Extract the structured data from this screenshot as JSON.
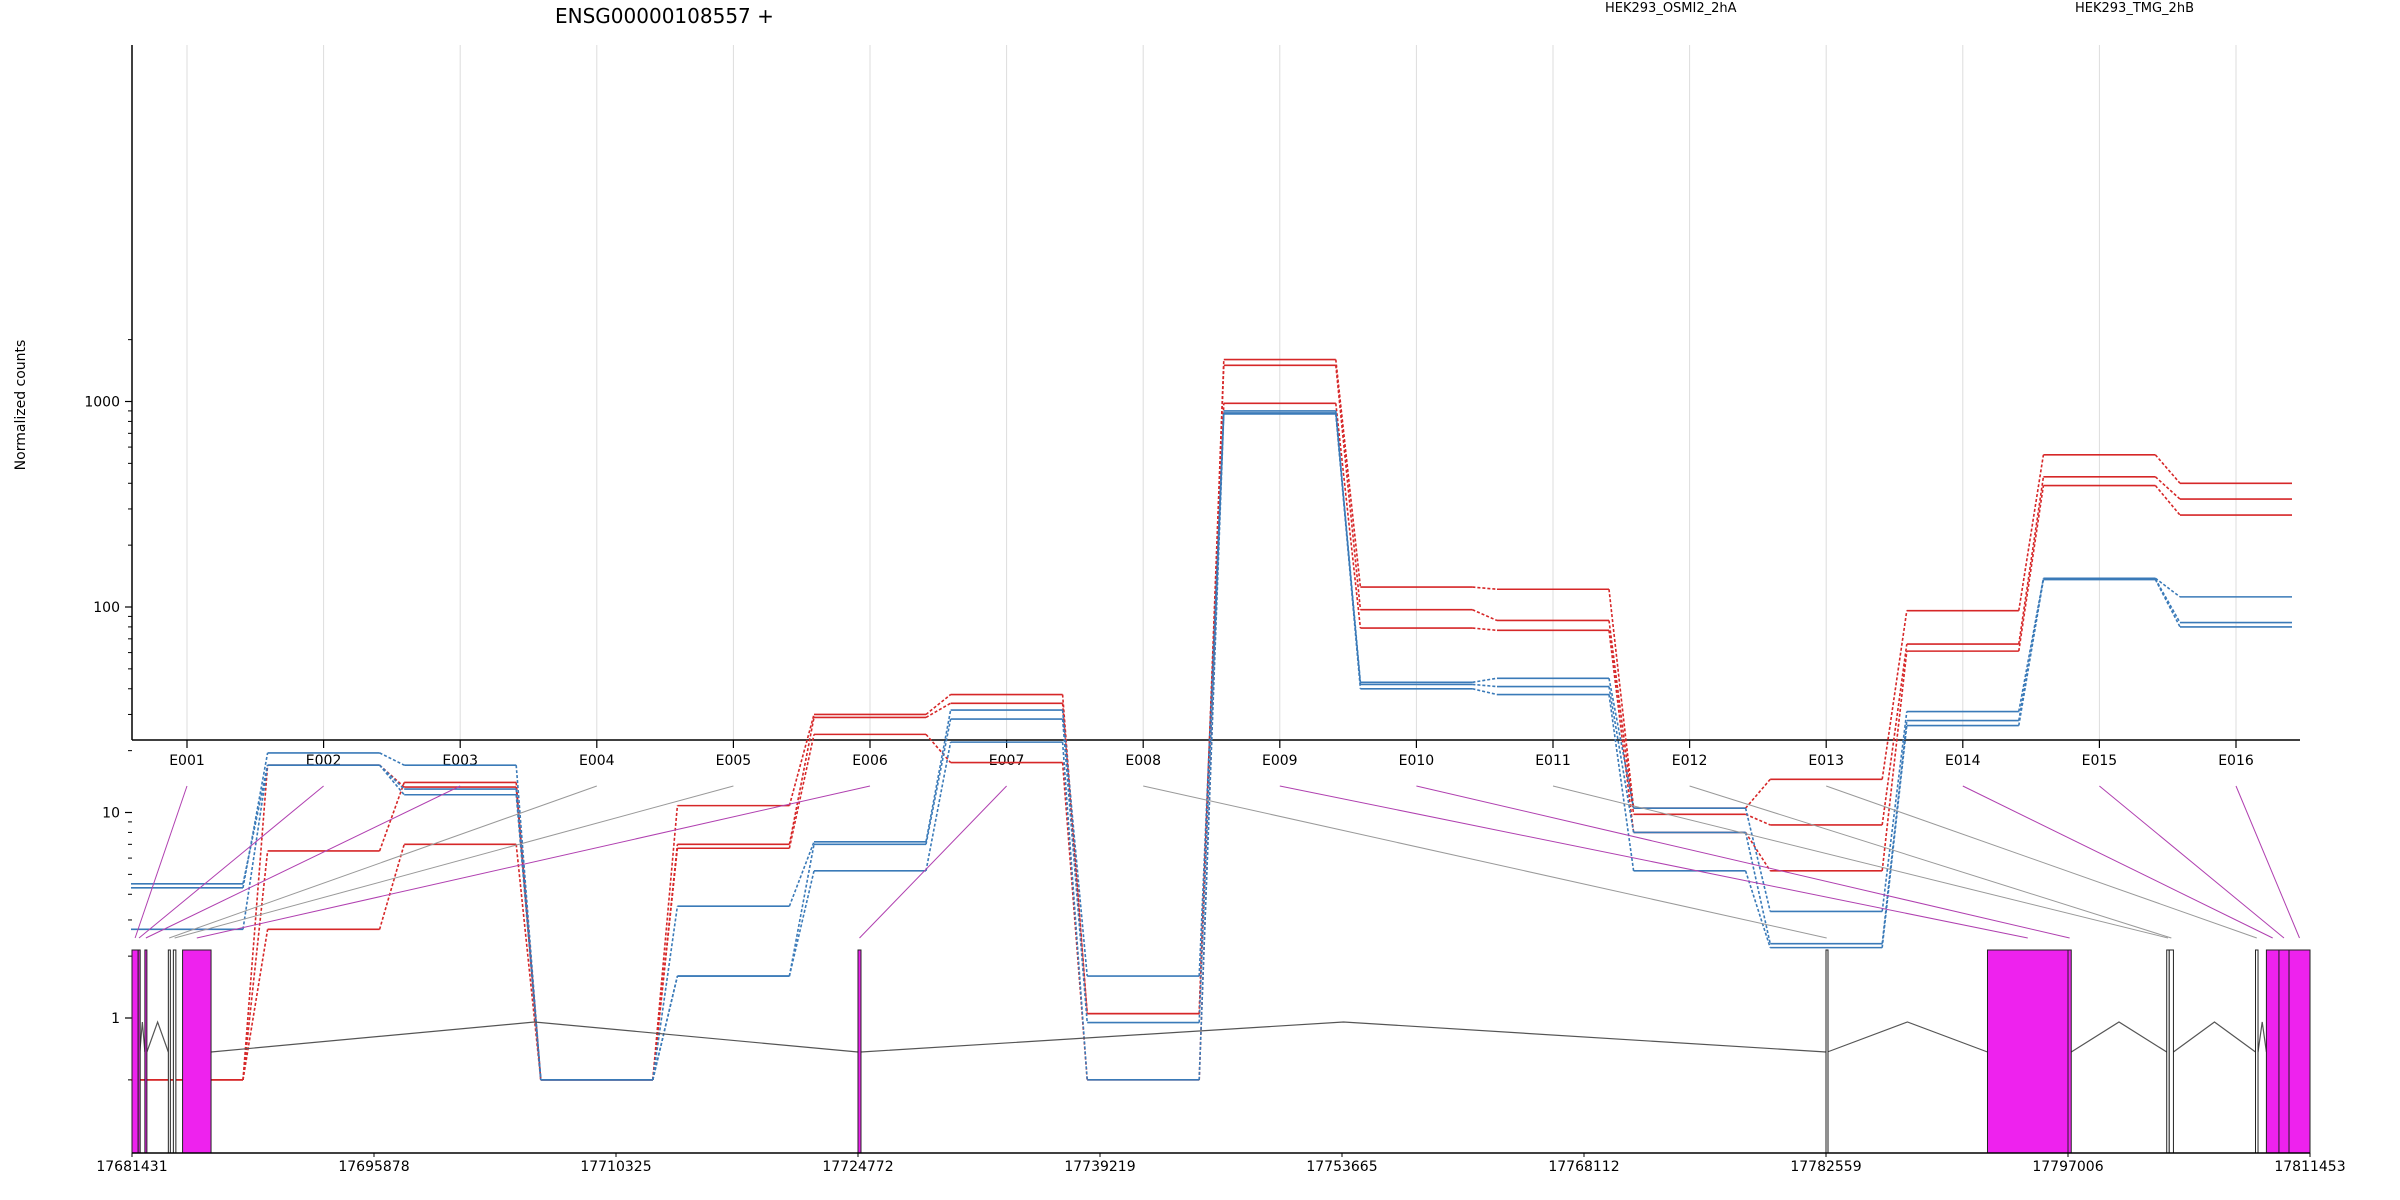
{
  "chart_data": {
    "type": "line",
    "title": "ENSG00000108557 +",
    "ylabel": "Normalized counts",
    "yscale": "log",
    "ylim": [
      0.5,
      2200
    ],
    "yticks": [
      {
        "value": 1,
        "label": "1"
      },
      {
        "value": 10,
        "label": "10"
      },
      {
        "value": 100,
        "label": "100"
      },
      {
        "value": 1000,
        "label": "1000"
      }
    ],
    "categories": [
      "E001",
      "E002",
      "E003",
      "E004",
      "E005",
      "E006",
      "E007",
      "E008",
      "E009",
      "E010",
      "E011",
      "E012",
      "E013",
      "E014",
      "E015",
      "E016"
    ],
    "grid": "vertical",
    "legend": [
      {
        "name": "HEK293_OSMI2_2hA",
        "color": "#d62728"
      },
      {
        "name": "HEK293_TMG_2hB",
        "color": "#3a7ab8"
      }
    ],
    "series": [
      {
        "group": "HEK293_OSMI2_2hA",
        "color": "#d62728",
        "values": [
          0.5,
          6.5,
          14,
          0.5,
          10.8,
          30,
          37.5,
          1.05,
          1600,
          125,
          122,
          10.5,
          14.5,
          96,
          550,
          400
        ]
      },
      {
        "group": "HEK293_OSMI2_2hA",
        "color": "#d62728",
        "values": [
          0.5,
          2.7,
          7,
          0.5,
          7,
          29,
          34,
          1.05,
          1500,
          97,
          86,
          9.8,
          8.7,
          66,
          430,
          335
        ]
      },
      {
        "group": "HEK293_OSMI2_2hA",
        "color": "#d62728",
        "values": [
          0.5,
          17,
          13.3,
          0.5,
          6.7,
          24,
          17.5,
          0.5,
          980,
          79,
          77,
          8,
          5.2,
          61,
          390,
          280
        ]
      },
      {
        "group": "HEK293_TMG_2hB",
        "color": "#3a7ab8",
        "values": [
          4.3,
          19.5,
          17,
          0.5,
          3.5,
          7.2,
          31.5,
          1.6,
          900,
          43,
          45,
          10.5,
          3.3,
          31,
          138,
          112
        ]
      },
      {
        "group": "HEK293_TMG_2hB",
        "color": "#3a7ab8",
        "values": [
          4.5,
          17,
          12.2,
          0.5,
          1.6,
          7,
          28.5,
          0.95,
          880,
          42,
          41,
          8,
          2.3,
          28,
          137,
          84
        ]
      },
      {
        "group": "HEK293_TMG_2hB",
        "color": "#3a7ab8",
        "values": [
          2.7,
          17,
          13,
          0.5,
          1.6,
          5.2,
          22,
          0.5,
          870,
          40,
          37.5,
          5.2,
          2.2,
          26.5,
          136,
          80
        ]
      }
    ],
    "gene_model": {
      "coordinate_ticks": [
        "17681431",
        "17695878",
        "17710325",
        "17724772",
        "17739219",
        "17753665",
        "17768112",
        "17782559",
        "17797006",
        "17811453"
      ],
      "coord_range": [
        17681431,
        17811453
      ],
      "highlight_color": "#ee22ee",
      "exons": [
        {
          "id": "E001",
          "start": 17681431,
          "end": 17681800,
          "highlighted": true
        },
        {
          "id": "E002",
          "start": 17681800,
          "end": 17681900,
          "highlighted": true
        },
        {
          "id": "E003",
          "start": 17682200,
          "end": 17682320,
          "highlighted": true
        },
        {
          "id": "E004",
          "start": 17683600,
          "end": 17683700,
          "highlighted": false
        },
        {
          "id": "E005",
          "start": 17683900,
          "end": 17684050,
          "highlighted": false
        },
        {
          "id": "E006",
          "start": 17684450,
          "end": 17686150,
          "highlighted": true
        },
        {
          "id": "E007",
          "start": 17724772,
          "end": 17724950,
          "highlighted": true
        },
        {
          "id": "E008",
          "start": 17782559,
          "end": 17782640,
          "highlighted": false
        },
        {
          "id": "E009",
          "start": 17792200,
          "end": 17797006,
          "highlighted": true
        },
        {
          "id": "E010",
          "start": 17797006,
          "end": 17797200,
          "highlighted": true
        },
        {
          "id": "E011",
          "start": 17802900,
          "end": 17803050,
          "highlighted": false
        },
        {
          "id": "E012",
          "start": 17803050,
          "end": 17803300,
          "highlighted": false
        },
        {
          "id": "E013",
          "start": 17808200,
          "end": 17808350,
          "highlighted": false
        },
        {
          "id": "E014",
          "start": 17808850,
          "end": 17809600,
          "highlighted": true
        },
        {
          "id": "E015",
          "start": 17809600,
          "end": 17810200,
          "highlighted": true
        },
        {
          "id": "E016",
          "start": 17810200,
          "end": 17811453,
          "highlighted": true
        }
      ],
      "introns": [
        {
          "from": 17681900,
          "to": 17682200
        },
        {
          "from": 17682320,
          "to": 17683600
        },
        {
          "from": 17686150,
          "to": 17724772
        },
        {
          "from": 17724950,
          "to": 17782559
        },
        {
          "from": 17782640,
          "to": 17792200
        },
        {
          "from": 17797200,
          "to": 17802900
        },
        {
          "from": 17803300,
          "to": 17808200
        },
        {
          "from": 17808350,
          "to": 17808850
        }
      ]
    }
  }
}
